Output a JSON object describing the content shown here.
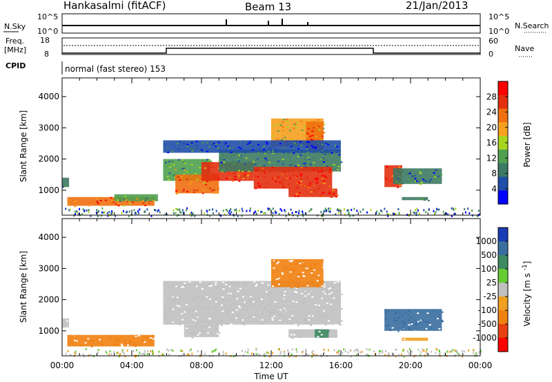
{
  "header": {
    "station": "Hankasalmi (fitACF)",
    "beam": "Beam 13",
    "date": "21/Jan/2013"
  },
  "noise_panel": {
    "left_label": "N.Sky",
    "right_label": "N.Search",
    "left_ticks": [
      "10^5",
      "10^0"
    ],
    "right_ticks": [
      "10^5",
      "10^0"
    ]
  },
  "freq_panel": {
    "left_label_1": "Freq.",
    "left_label_2": "[MHz]",
    "left_ticks": [
      "18",
      "8"
    ],
    "right_label": "Nave",
    "right_ticks": [
      "60",
      "0"
    ]
  },
  "cpid_panel": {
    "label": "CPID",
    "program": "normal (fast stereo) 153"
  },
  "colors": {
    "power": [
      "#0000ff",
      "#1f4ea8",
      "#3d7a63",
      "#4fa04f",
      "#a6d61e",
      "#f6a020",
      "#f07010",
      "#e23010",
      "#ff0000"
    ],
    "velocity": [
      "#1a3cb4",
      "#3a6ea0",
      "#3d8a63",
      "#66cc33",
      "#c0c0c0",
      "#f0a020",
      "#f08010",
      "#e84010",
      "#ff0000"
    ],
    "ground_scatter": "#c0c0c0"
  },
  "chart_data": [
    {
      "type": "heatmap",
      "title": "",
      "parameter": "Power",
      "ylabel": "Slant Range [km]",
      "ylim": [
        200,
        4600
      ],
      "yticks": [
        "1000",
        "2000",
        "3000",
        "4000"
      ],
      "xlim_hours": [
        0,
        24
      ],
      "colorbar": {
        "label": "Power [dB]",
        "ticks": [
          "4",
          "8",
          "12",
          "16",
          "20",
          "24",
          "28"
        ],
        "range": [
          0,
          32
        ]
      },
      "regions": [
        {
          "t0": 0.0,
          "t1": 0.4,
          "r0": 1100,
          "r1": 1400,
          "value": 10
        },
        {
          "t0": 0.3,
          "t1": 5.3,
          "r0": 500,
          "r1": 780,
          "value": 24
        },
        {
          "t0": 3.0,
          "t1": 5.5,
          "r0": 650,
          "r1": 870,
          "value": 14
        },
        {
          "t0": 5.8,
          "t1": 8.5,
          "r0": 1300,
          "r1": 2000,
          "value": 12
        },
        {
          "t0": 6.5,
          "t1": 9.0,
          "r0": 900,
          "r1": 1500,
          "value": 24
        },
        {
          "t0": 8.0,
          "t1": 11.0,
          "r0": 1300,
          "r1": 1900,
          "value": 26
        },
        {
          "t0": 9.0,
          "t1": 16.0,
          "r0": 1600,
          "r1": 2300,
          "value": 10
        },
        {
          "t0": 11.0,
          "t1": 15.5,
          "r0": 1050,
          "r1": 1750,
          "value": 28
        },
        {
          "t0": 12.0,
          "t1": 15.0,
          "r0": 2400,
          "r1": 3300,
          "value": 18
        },
        {
          "t0": 14.0,
          "t1": 15.0,
          "r0": 2300,
          "r1": 3200,
          "value": 24
        },
        {
          "t0": 13.0,
          "t1": 15.8,
          "r0": 780,
          "r1": 1050,
          "value": 26
        },
        {
          "t0": 18.5,
          "t1": 19.5,
          "r0": 1100,
          "r1": 1800,
          "value": 26
        },
        {
          "t0": 19.0,
          "t1": 21.8,
          "r0": 1200,
          "r1": 1700,
          "value": 10
        },
        {
          "t0": 19.5,
          "t1": 21.0,
          "r0": 680,
          "r1": 780,
          "value": 8
        },
        {
          "t0": 5.8,
          "t1": 16.0,
          "r0": 2200,
          "r1": 2600,
          "value": 6
        }
      ]
    },
    {
      "type": "heatmap",
      "title": "",
      "parameter": "Velocity",
      "xlabel": "Time UT",
      "ylabel": "Slant Range [km]",
      "ylim": [
        200,
        4600
      ],
      "yticks": [
        "1000",
        "2000",
        "3000",
        "4000"
      ],
      "xticks": [
        "00:00",
        "04:00",
        "08:00",
        "12:00",
        "16:00",
        "20:00",
        "00:00"
      ],
      "xlim_hours": [
        0,
        24
      ],
      "colorbar": {
        "label": "Velocity [m s^-1]",
        "ticks": [
          "1000",
          "500",
          "100",
          "25",
          "-25",
          "-100",
          "-500",
          "-1000"
        ]
      },
      "regions": [
        {
          "t0": 0.0,
          "t1": 0.4,
          "r0": 1100,
          "r1": 1400,
          "value": "ground"
        },
        {
          "t0": 0.3,
          "t1": 5.3,
          "r0": 500,
          "r1": 870,
          "value": -150
        },
        {
          "t0": 5.8,
          "t1": 16.0,
          "r0": 1200,
          "r1": 2600,
          "value": "ground"
        },
        {
          "t0": 7.0,
          "t1": 9.0,
          "r0": 800,
          "r1": 1200,
          "value": "ground"
        },
        {
          "t0": 12.0,
          "t1": 15.0,
          "r0": 2400,
          "r1": 3300,
          "value": -300
        },
        {
          "t0": 13.0,
          "t1": 15.8,
          "r0": 780,
          "r1": 1050,
          "value": "ground"
        },
        {
          "t0": 14.5,
          "t1": 15.3,
          "r0": 780,
          "r1": 1050,
          "value": 60
        },
        {
          "t0": 18.5,
          "t1": 21.8,
          "r0": 1000,
          "r1": 1700,
          "value": 200
        },
        {
          "t0": 19.5,
          "t1": 21.0,
          "r0": 680,
          "r1": 780,
          "value": -50
        }
      ]
    }
  ]
}
